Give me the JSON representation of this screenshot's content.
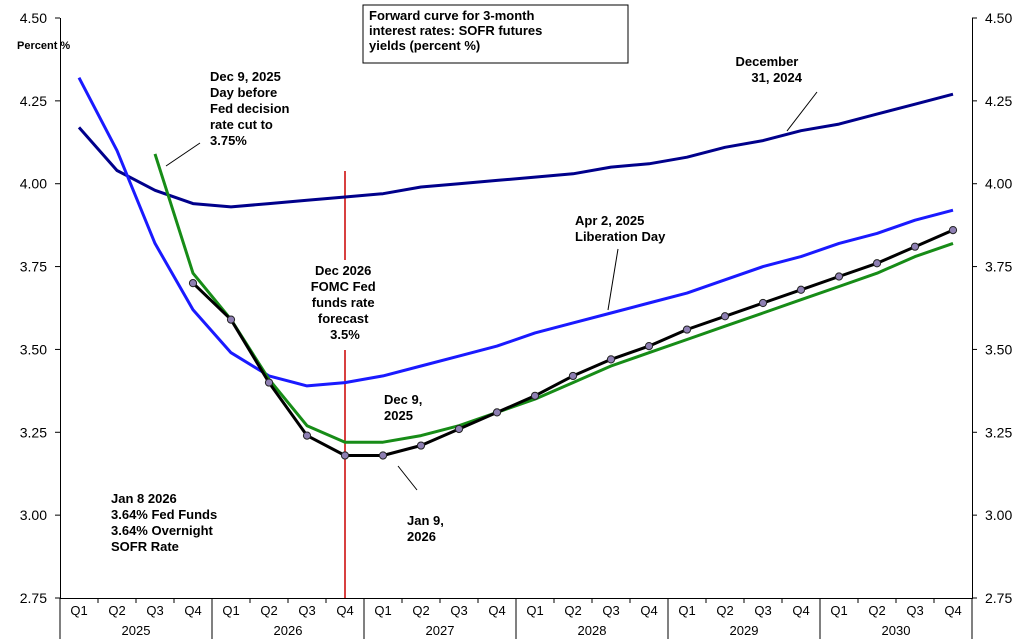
{
  "chart_data": {
    "type": "line",
    "title": "Forward curve for 3-month interest rates: SOFR futures yields (percent %)",
    "title_lines": [
      "Forward curve for 3-month",
      "interest rates: SOFR futures",
      "yields (percent %)"
    ],
    "ylabel": "Percent %",
    "ylim": [
      2.75,
      4.5
    ],
    "yticks": [
      "2.75",
      "3.00",
      "3.25",
      "3.50",
      "3.75",
      "4.00",
      "4.25",
      "4.50"
    ],
    "right_yticks": [
      "2.75",
      "3.00",
      "3.25",
      "3.50",
      "3.75",
      "4.00",
      "4.25",
      "4.50"
    ],
    "grid": false,
    "quarters": [
      "Q1",
      "Q2",
      "Q3",
      "Q4"
    ],
    "years": [
      "2025",
      "2026",
      "2027",
      "2028",
      "2029",
      "2030"
    ],
    "series": [
      {
        "name": "December 31, 2024",
        "color": "#00008b",
        "start_index": 0,
        "values": [
          4.17,
          4.04,
          3.98,
          3.94,
          3.93,
          3.94,
          3.95,
          3.96,
          3.97,
          3.99,
          4.0,
          4.01,
          4.02,
          4.03,
          4.05,
          4.06,
          4.08,
          4.11,
          4.13,
          4.16,
          4.18,
          4.21,
          4.24,
          4.27
        ]
      },
      {
        "name": "Apr 2, 2025 Liberation Day",
        "color": "#1a1aff",
        "start_index": 0,
        "values": [
          4.32,
          4.1,
          3.82,
          3.62,
          3.49,
          3.42,
          3.39,
          3.4,
          3.42,
          3.45,
          3.48,
          3.51,
          3.55,
          3.58,
          3.61,
          3.64,
          3.67,
          3.71,
          3.75,
          3.78,
          3.82,
          3.85,
          3.89,
          3.92
        ]
      },
      {
        "name": "Dec 9, 2025",
        "color": "#178c17",
        "start_index": 2,
        "values": [
          4.09,
          3.73,
          3.59,
          3.41,
          3.27,
          3.22,
          3.22,
          3.24,
          3.27,
          3.31,
          3.35,
          3.4,
          3.45,
          3.49,
          3.53,
          3.57,
          3.61,
          3.65,
          3.69,
          3.73,
          3.78,
          3.82
        ]
      },
      {
        "name": "Jan 9, 2026",
        "color": "#000000",
        "marker_color": "#8e7fb3",
        "start_index": 3,
        "values": [
          3.7,
          3.59,
          3.4,
          3.24,
          3.18,
          3.18,
          3.21,
          3.26,
          3.31,
          3.36,
          3.42,
          3.47,
          3.51,
          3.56,
          3.6,
          3.64,
          3.68,
          3.72,
          3.76,
          3.81,
          3.86
        ]
      }
    ],
    "reference_line": {
      "quarter_index": 7,
      "color": "#cc0000",
      "y_value": 3.5
    },
    "annotations": [
      {
        "lines": [
          "Dec 9, 2025",
          "Day before",
          "Fed decision",
          "rate cut to",
          "3.75%"
        ]
      },
      {
        "lines": [
          "December",
          "31, 2024"
        ]
      },
      {
        "lines": [
          "Apr 2, 2025",
          "Liberation Day"
        ]
      },
      {
        "lines": [
          "Dec 2026",
          "FOMC Fed",
          "funds rate",
          "forecast",
          "3.5%"
        ]
      },
      {
        "lines": [
          "Dec 9,",
          "2025"
        ]
      },
      {
        "lines": [
          "Jan 9,",
          "2026"
        ]
      },
      {
        "lines": [
          "Jan 8 2026",
          "3.64% Fed Funds",
          "3.64% Overnight",
          "SOFR Rate"
        ]
      }
    ]
  }
}
